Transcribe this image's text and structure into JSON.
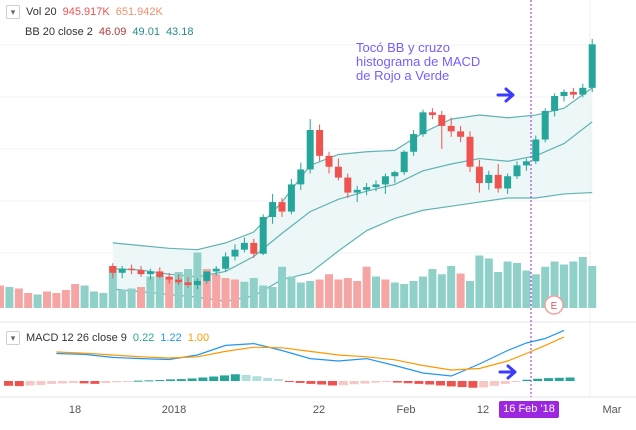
{
  "legend": {
    "vol": {
      "name": "Vol 20",
      "v1": "945.917K",
      "v2": "651.942K"
    },
    "bb": {
      "name": "BB 20 close 2",
      "basis": "46.09",
      "upper": "49.01",
      "lower": "43.18"
    },
    "macd": {
      "name": "MACD 12 26 close 9",
      "hist": "0.22",
      "macd": "1.22",
      "signal": "1.00"
    }
  },
  "annotation": [
    "Tocó BB y cruzo",
    "histograma de MACD",
    "de Rojo a Verde"
  ],
  "crosshair_date": "16 Feb '18",
  "event_marker": "E",
  "colors": {
    "up": "#26a69a",
    "down": "#ef5350",
    "up_vol": "#8fd1c9",
    "down_vol": "#f4a5a4",
    "bb": "#5fb3b3",
    "macd": "#2196f3",
    "signal": "#ff9800",
    "purple": "#9c27e0",
    "arrow": "#3b3bff"
  },
  "chart_data": {
    "type": "candlestick",
    "x_tick_labels": [
      "18",
      "2018",
      "22",
      "Feb",
      "12",
      "Mar"
    ],
    "ohlc": [
      [
        12,
        38.5,
        38.7,
        37.6,
        38.0
      ],
      [
        13,
        38.0,
        38.5,
        37.6,
        38.3
      ],
      [
        14,
        38.3,
        38.6,
        37.9,
        38.2
      ],
      [
        15,
        38.2,
        38.5,
        37.7,
        37.9
      ],
      [
        16,
        37.9,
        38.3,
        37.5,
        38.1
      ],
      [
        17,
        38.1,
        38.4,
        37.6,
        37.7
      ],
      [
        18,
        37.7,
        38.0,
        37.2,
        37.5
      ],
      [
        19,
        37.5,
        37.9,
        37.1,
        37.3
      ],
      [
        20,
        37.3,
        37.7,
        36.9,
        37.1
      ],
      [
        21,
        37.1,
        37.6,
        36.8,
        37.4
      ],
      [
        22,
        37.4,
        38.0,
        37.2,
        38.1
      ],
      [
        23,
        38.1,
        38.5,
        37.8,
        38.3
      ],
      [
        24,
        38.3,
        39.5,
        38.1,
        39.2
      ],
      [
        25,
        39.2,
        40.1,
        38.9,
        39.7
      ],
      [
        26,
        39.7,
        40.6,
        39.5,
        40.2
      ],
      [
        27,
        40.2,
        40.5,
        39.1,
        39.4
      ],
      [
        28,
        39.4,
        42.3,
        39.3,
        42.1
      ],
      [
        29,
        42.1,
        43.8,
        41.6,
        43.2
      ],
      [
        30,
        43.2,
        43.5,
        42.1,
        42.5
      ],
      [
        31,
        42.5,
        44.9,
        42.3,
        44.5
      ],
      [
        32,
        44.5,
        46.1,
        44.1,
        45.6
      ],
      [
        33,
        45.6,
        49.3,
        45.3,
        48.5
      ],
      [
        34,
        48.5,
        48.9,
        46.2,
        46.6
      ],
      [
        35,
        46.6,
        46.9,
        45.3,
        45.8
      ],
      [
        36,
        45.8,
        46.4,
        44.8,
        45.0
      ],
      [
        37,
        45.0,
        45.3,
        43.5,
        43.9
      ],
      [
        38,
        43.9,
        44.4,
        43.2,
        44.1
      ],
      [
        39,
        44.1,
        44.6,
        43.7,
        44.3
      ],
      [
        40,
        44.3,
        44.8,
        44.0,
        44.5
      ],
      [
        41,
        44.5,
        45.3,
        43.8,
        45.1
      ],
      [
        42,
        45.1,
        45.5,
        44.6,
        45.4
      ],
      [
        43,
        45.4,
        47.0,
        45.2,
        46.9
      ],
      [
        44,
        46.9,
        48.5,
        46.6,
        48.2
      ],
      [
        45,
        48.2,
        50.0,
        48.0,
        49.8
      ],
      [
        46,
        49.8,
        50.1,
        49.3,
        49.6
      ],
      [
        47,
        49.6,
        49.9,
        47.1,
        48.8
      ],
      [
        48,
        48.8,
        49.4,
        48.0,
        48.4
      ],
      [
        49,
        48.4,
        48.8,
        47.6,
        48.0
      ],
      [
        50,
        48.0,
        48.4,
        45.4,
        45.8
      ],
      [
        51,
        45.8,
        46.3,
        43.9,
        44.6
      ],
      [
        52,
        44.6,
        45.5,
        44.1,
        45.2
      ],
      [
        53,
        45.2,
        46.0,
        43.9,
        44.2
      ],
      [
        54,
        44.2,
        45.3,
        43.8,
        45.1
      ],
      [
        55,
        45.1,
        46.2,
        44.9,
        45.9
      ],
      [
        56,
        45.9,
        46.4,
        45.5,
        46.2
      ],
      [
        57,
        46.2,
        48.1,
        46.0,
        47.8
      ],
      [
        58,
        47.8,
        50.1,
        47.6,
        49.9
      ],
      [
        59,
        49.9,
        51.2,
        49.5,
        51.0
      ],
      [
        60,
        51.0,
        51.5,
        50.6,
        51.3
      ],
      [
        61,
        51.3,
        51.6,
        50.8,
        51.1
      ],
      [
        62,
        51.1,
        51.9,
        50.9,
        51.6
      ],
      [
        63,
        51.6,
        55.2,
        51.3,
        54.8
      ]
    ],
    "bb_upper": [
      [
        12,
        40.2
      ],
      [
        15,
        40.0
      ],
      [
        18,
        39.8
      ],
      [
        21,
        39.7
      ],
      [
        24,
        40.2
      ],
      [
        27,
        41.0
      ],
      [
        30,
        43.2
      ],
      [
        33,
        45.9
      ],
      [
        36,
        46.7
      ],
      [
        39,
        46.9
      ],
      [
        42,
        47.0
      ],
      [
        45,
        48.3
      ],
      [
        48,
        49.3
      ],
      [
        51,
        49.6
      ],
      [
        54,
        49.4
      ],
      [
        57,
        49.6
      ],
      [
        60,
        50.1
      ],
      [
        63,
        51.6
      ]
    ],
    "bb_basis": [
      [
        12,
        38.3
      ],
      [
        15,
        38.2
      ],
      [
        18,
        37.9
      ],
      [
        21,
        37.7
      ],
      [
        24,
        38.1
      ],
      [
        27,
        39.2
      ],
      [
        30,
        40.9
      ],
      [
        33,
        42.5
      ],
      [
        36,
        43.4
      ],
      [
        39,
        44.0
      ],
      [
        42,
        44.5
      ],
      [
        45,
        45.5
      ],
      [
        48,
        46.0
      ],
      [
        51,
        46.4
      ],
      [
        54,
        46.2
      ],
      [
        57,
        46.6
      ],
      [
        60,
        47.5
      ],
      [
        63,
        49.1
      ]
    ],
    "bb_lower": [
      [
        12,
        36.8
      ],
      [
        15,
        36.6
      ],
      [
        18,
        36.4
      ],
      [
        21,
        36.2
      ],
      [
        24,
        35.9
      ],
      [
        27,
        36.3
      ],
      [
        30,
        37.5
      ],
      [
        33,
        38.0
      ],
      [
        36,
        39.6
      ],
      [
        39,
        41.1
      ],
      [
        42,
        42.0
      ],
      [
        45,
        42.6
      ],
      [
        48,
        42.9
      ],
      [
        51,
        43.2
      ],
      [
        54,
        43.5
      ],
      [
        57,
        43.5
      ],
      [
        60,
        43.8
      ],
      [
        63,
        43.9
      ]
    ],
    "volume": [
      0.3,
      0.28,
      0.26,
      0.2,
      0.18,
      0.22,
      0.2,
      0.24,
      0.32,
      0.3,
      0.22,
      0.2,
      0.55,
      0.24,
      0.26,
      0.28,
      0.42,
      0.45,
      0.42,
      0.48,
      0.52,
      0.74,
      0.52,
      0.45,
      0.4,
      0.38,
      0.35,
      0.4,
      0.3,
      0.28,
      0.55,
      0.42,
      0.34,
      0.36,
      0.38,
      0.45,
      0.38,
      0.4,
      0.36,
      0.55,
      0.42,
      0.38,
      0.34,
      0.32,
      0.36,
      0.42,
      0.52,
      0.45,
      0.56,
      0.46,
      0.36,
      0.7,
      0.66,
      0.48,
      0.62,
      0.6,
      0.5,
      0.45,
      0.55,
      0.62,
      0.58,
      0.62,
      0.68,
      0.56
    ],
    "macd_line": [
      [
        12,
        0.45
      ],
      [
        18,
        0.42
      ],
      [
        24,
        0.32
      ],
      [
        30,
        0.28
      ],
      [
        36,
        0.25
      ],
      [
        42,
        0.4
      ],
      [
        48,
        0.72
      ],
      [
        54,
        0.78
      ],
      [
        60,
        0.55
      ],
      [
        66,
        0.28
      ],
      [
        72,
        0.2
      ],
      [
        78,
        0.28
      ],
      [
        84,
        0.05
      ],
      [
        90,
        -0.2
      ],
      [
        96,
        -0.3
      ],
      [
        102,
        0.1
      ],
      [
        108,
        0.55
      ],
      [
        112,
        0.8
      ],
      [
        116,
        0.95
      ],
      [
        120,
        1.22
      ]
    ],
    "signal_line": [
      [
        12,
        0.5
      ],
      [
        18,
        0.46
      ],
      [
        24,
        0.4
      ],
      [
        30,
        0.34
      ],
      [
        36,
        0.3
      ],
      [
        42,
        0.34
      ],
      [
        48,
        0.52
      ],
      [
        54,
        0.66
      ],
      [
        60,
        0.64
      ],
      [
        66,
        0.52
      ],
      [
        72,
        0.4
      ],
      [
        78,
        0.34
      ],
      [
        84,
        0.24
      ],
      [
        90,
        0.05
      ],
      [
        96,
        -0.1
      ],
      [
        102,
        -0.05
      ],
      [
        108,
        0.2
      ],
      [
        112,
        0.45
      ],
      [
        116,
        0.72
      ],
      [
        120,
        1.0
      ]
    ],
    "macd_hist": [
      -0.3,
      -0.32,
      -0.28,
      -0.25,
      -0.18,
      -0.15,
      -0.12,
      -0.15,
      -0.18,
      -0.12,
      -0.08,
      -0.05,
      0.02,
      0.04,
      0.06,
      0.1,
      0.12,
      0.16,
      0.22,
      0.28,
      0.35,
      0.42,
      0.38,
      0.3,
      0.2,
      0.12,
      -0.05,
      -0.12,
      -0.18,
      -0.22,
      -0.28,
      -0.26,
      -0.2,
      -0.16,
      -0.1,
      -0.06,
      -0.1,
      -0.14,
      -0.18,
      -0.22,
      -0.28,
      -0.34,
      -0.38,
      -0.42,
      -0.4,
      -0.3,
      -0.18,
      -0.05,
      0.08,
      0.14,
      0.18,
      0.2,
      0.22
    ]
  }
}
